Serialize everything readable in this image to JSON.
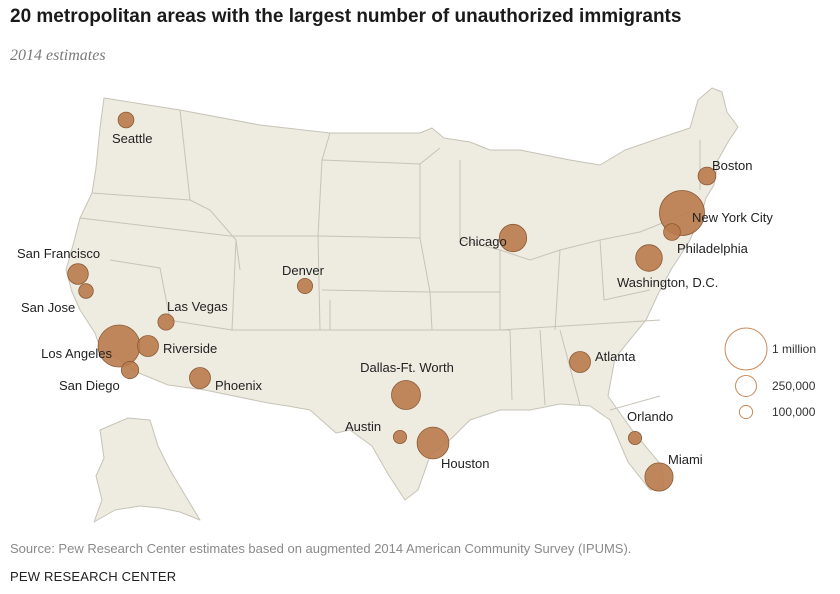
{
  "title": "20 metropolitan areas with the largest number of unauthorized immigrants",
  "subtitle": "2014 estimates",
  "colors": {
    "bubble": "#b97b4d",
    "bubble_stroke": "#8c5a34",
    "land": "#eeebe1",
    "border": "#c7c3b6",
    "legend_stroke": "#c98a5a"
  },
  "cities": [
    {
      "name": "New York City",
      "immigrants": 1150000
    },
    {
      "name": "Los Angeles",
      "immigrants": 1000000
    },
    {
      "name": "Houston",
      "immigrants": 575000
    },
    {
      "name": "Dallas-Ft. Worth",
      "immigrants": 475000
    },
    {
      "name": "Miami",
      "immigrants": 450000
    },
    {
      "name": "Chicago",
      "immigrants": 425000
    },
    {
      "name": "Washington, D.C.",
      "immigrants": 400000
    },
    {
      "name": "Atlanta",
      "immigrants": 250000
    },
    {
      "name": "Riverside",
      "immigrants": 250000
    },
    {
      "name": "Phoenix",
      "immigrants": 250000
    },
    {
      "name": "San Francisco",
      "immigrants": 240000
    },
    {
      "name": "Boston",
      "immigrants": 180000
    },
    {
      "name": "Philadelphia",
      "immigrants": 160000
    },
    {
      "name": "San Diego",
      "immigrants": 170000
    },
    {
      "name": "Seattle",
      "immigrants": 140000
    },
    {
      "name": "Las Vegas",
      "immigrants": 150000
    },
    {
      "name": "Denver",
      "immigrants": 130000
    },
    {
      "name": "San Jose",
      "immigrants": 120000
    },
    {
      "name": "Orlando",
      "immigrants": 100000
    },
    {
      "name": "Austin",
      "immigrants": 100000
    }
  ],
  "legend": [
    {
      "label": "1 million",
      "value": 1000000
    },
    {
      "label": "250,000",
      "value": 250000
    },
    {
      "label": "100,000",
      "value": 100000
    }
  ],
  "source": "Source: Pew Research Center estimates based on augmented 2014 American Community Survey (IPUMS).",
  "org": "PEW RESEARCH CENTER"
}
